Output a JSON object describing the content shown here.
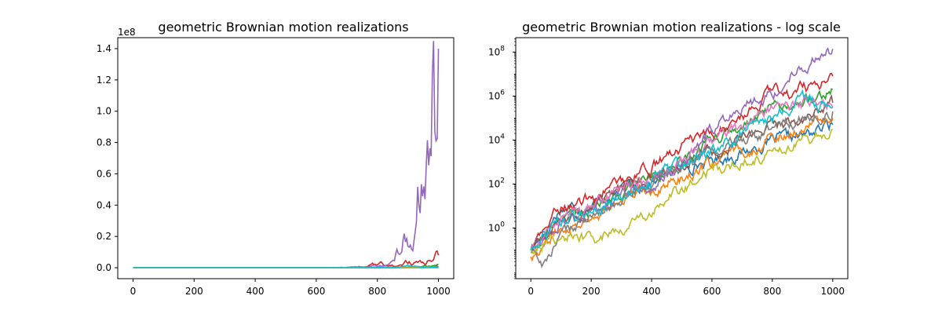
{
  "figure": {
    "series_colors": [
      "#1f77b4",
      "#ff7f0e",
      "#2ca02c",
      "#d62728",
      "#9467bd",
      "#8c564b",
      "#e377c2",
      "#7f7f7f",
      "#bcbd22",
      "#17becf"
    ]
  },
  "chart_data": [
    {
      "type": "line",
      "title": "geometric Brownian motion realizations",
      "xlabel": "",
      "ylabel": "",
      "xlim": [
        -50,
        1050
      ],
      "ylim": [
        -7000000,
        147000000
      ],
      "xticks": [
        0,
        200,
        400,
        600,
        800,
        1000
      ],
      "xtick_labels": [
        "0",
        "200",
        "400",
        "600",
        "800",
        "1000"
      ],
      "yticks": [
        0,
        20000000,
        40000000,
        60000000,
        80000000,
        100000000,
        120000000,
        140000000
      ],
      "ytick_labels": [
        "0.0",
        "0.2",
        "0.4",
        "0.6",
        "0.8",
        "1.0",
        "1.2",
        "1.4"
      ],
      "offset_label": "1e8",
      "grid": false,
      "yscale": "linear",
      "series": [
        {
          "color": "#1f77b4",
          "x": [
            0,
            100,
            200,
            300,
            400,
            500,
            600,
            700,
            800,
            900,
            1000
          ],
          "y": [
            0.1,
            8,
            12,
            60,
            120,
            600,
            1200,
            2500,
            9000,
            15000,
            50000
          ]
        },
        {
          "color": "#ff7f0e",
          "x": [
            0,
            100,
            200,
            300,
            400,
            500,
            600,
            700,
            800,
            900,
            1000
          ],
          "y": [
            0.05,
            1,
            3,
            20,
            60,
            200,
            800,
            3000,
            10000,
            40000,
            100000
          ]
        },
        {
          "color": "#2ca02c",
          "x": [
            0,
            100,
            200,
            300,
            400,
            500,
            600,
            700,
            800,
            900,
            1000
          ],
          "y": [
            0.08,
            3,
            10,
            40,
            300,
            1000,
            8000,
            40000,
            200000,
            800000,
            2000000
          ]
        },
        {
          "color": "#d62728",
          "x": [
            0,
            100,
            200,
            300,
            400,
            500,
            600,
            700,
            760,
            800,
            840,
            870,
            900,
            940,
            970,
            1000
          ],
          "y": [
            0.1,
            10,
            20,
            150,
            600,
            5000,
            15000,
            100000,
            500000,
            1500000,
            2000000,
            1200000,
            3000000,
            2500000,
            5000000,
            8000000
          ]
        },
        {
          "color": "#9467bd",
          "x": [
            0,
            100,
            200,
            300,
            400,
            500,
            600,
            700,
            760,
            800,
            840,
            860,
            880,
            900,
            920,
            935,
            950,
            965,
            975,
            985,
            990,
            995,
            1000
          ],
          "y": [
            0.1,
            2,
            5,
            30,
            100,
            1000,
            30000,
            500000,
            800000,
            1500000,
            3000000,
            10000000,
            18000000,
            23000000,
            26000000,
            50000000,
            40000000,
            55000000,
            65000000,
            90000000,
            75000000,
            105000000,
            140000000
          ]
        },
        {
          "color": "#8c564b",
          "x": [
            0,
            100,
            200,
            300,
            400,
            500,
            600,
            700,
            800,
            900,
            1000
          ],
          "y": [
            0.1,
            2,
            8,
            50,
            200,
            1000,
            2000,
            10000,
            40000,
            100000,
            500000
          ]
        },
        {
          "color": "#e377c2",
          "x": [
            0,
            100,
            200,
            300,
            400,
            500,
            600,
            700,
            800,
            900,
            1000
          ],
          "y": [
            0.1,
            3,
            10,
            60,
            200,
            1000,
            8000,
            50000,
            300000,
            500000,
            300000
          ]
        },
        {
          "color": "#7f7f7f",
          "x": [
            0,
            40,
            100,
            200,
            300,
            400,
            500,
            600,
            700,
            800,
            900,
            1000
          ],
          "y": [
            0.1,
            0.02,
            0.5,
            3,
            20,
            100,
            500,
            2000,
            8000,
            20000,
            100000,
            200000
          ]
        },
        {
          "color": "#bcbd22",
          "x": [
            0,
            100,
            200,
            300,
            400,
            500,
            600,
            700,
            800,
            900,
            1000
          ],
          "y": [
            0.1,
            0.5,
            0.3,
            1,
            5,
            60,
            500,
            1000,
            3000,
            10000,
            30000
          ]
        },
        {
          "color": "#17becf",
          "x": [
            0,
            100,
            200,
            300,
            400,
            500,
            600,
            700,
            800,
            900,
            1000
          ],
          "y": [
            0.1,
            2,
            5,
            30,
            150,
            800,
            3000,
            20000,
            100000,
            800000,
            300000
          ]
        }
      ]
    },
    {
      "type": "line",
      "title": "geometric Brownian motion realizations - log scale",
      "xlabel": "",
      "ylabel": "",
      "xlim": [
        -50,
        1050
      ],
      "ylim": [
        0.005,
        450000000
      ],
      "xticks": [
        0,
        200,
        400,
        600,
        800,
        1000
      ],
      "xtick_labels": [
        "0",
        "200",
        "400",
        "600",
        "800",
        "1000"
      ],
      "yticks": [
        1,
        100,
        10000,
        1000000,
        100000000
      ],
      "ytick_labels_base": [
        "10",
        "10",
        "10",
        "10",
        "10"
      ],
      "ytick_labels_exp": [
        "0",
        "2",
        "4",
        "6",
        "8"
      ],
      "grid": false,
      "yscale": "log",
      "series_ref": "same realizations as the linear-scale panel"
    }
  ]
}
